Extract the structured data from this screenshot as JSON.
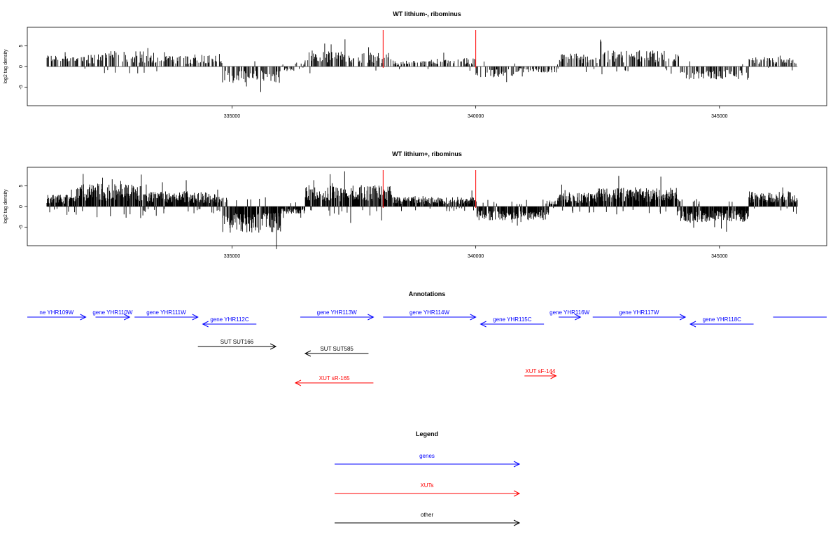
{
  "chart_data": [
    {
      "type": "bar",
      "title": "WT lithium-, ribominus",
      "xlabel": "",
      "ylabel": "log2 tag density",
      "x_range": [
        331200,
        346600
      ],
      "xlim": [
        330800,
        347200
      ],
      "ylim": [
        -9.5,
        9.5
      ],
      "x_ticks": [
        335000,
        340000,
        345000
      ],
      "x_tick_labels": [
        "335000",
        "340000",
        "345000"
      ],
      "y_ticks": [
        -5,
        0,
        5
      ],
      "y_tick_labels": [
        "-5",
        "0",
        "5"
      ],
      "marker_lines": [
        338100,
        340000
      ],
      "marker_color": "#ff0000",
      "bar_color": "#000000",
      "regions": [
        {
          "x0": 331200,
          "x1": 332200,
          "sign": 1,
          "mean": 2.0
        },
        {
          "x0": 332200,
          "x1": 333400,
          "sign": 1,
          "mean": 2.6
        },
        {
          "x0": 333400,
          "x1": 334200,
          "sign": 1,
          "mean": 1.8
        },
        {
          "x0": 334200,
          "x1": 334800,
          "sign": 1,
          "mean": 2.2
        },
        {
          "x0": 334800,
          "x1": 336000,
          "sign": -1,
          "mean": 2.8
        },
        {
          "x0": 336000,
          "x1": 336300,
          "sign": -1,
          "mean": 0.8
        },
        {
          "x0": 336300,
          "x1": 336500,
          "sign": 1,
          "mean": 1.2
        },
        {
          "x0": 336500,
          "x1": 337600,
          "sign": 1,
          "mean": 2.7
        },
        {
          "x0": 337600,
          "x1": 338300,
          "sign": 1,
          "mean": 2.3
        },
        {
          "x0": 338300,
          "x1": 339000,
          "sign": 1,
          "mean": 1.0
        },
        {
          "x0": 339000,
          "x1": 340000,
          "sign": 1,
          "mean": 1.4
        },
        {
          "x0": 340000,
          "x1": 340800,
          "sign": -1,
          "mean": 1.8
        },
        {
          "x0": 340800,
          "x1": 341700,
          "sign": -1,
          "mean": 1.0
        },
        {
          "x0": 341700,
          "x1": 342500,
          "sign": 1,
          "mean": 2.2
        },
        {
          "x0": 342500,
          "x1": 344200,
          "sign": 1,
          "mean": 2.7
        },
        {
          "x0": 344200,
          "x1": 345600,
          "sign": -1,
          "mean": 2.2
        },
        {
          "x0": 345600,
          "x1": 346600,
          "sign": 1,
          "mean": 1.6
        }
      ]
    },
    {
      "type": "bar",
      "title": "WT lithium+, ribominus",
      "xlabel": "",
      "ylabel": "log2 tag density",
      "x_range": [
        331200,
        346600
      ],
      "xlim": [
        330800,
        347200
      ],
      "ylim": [
        -9.5,
        9.5
      ],
      "x_ticks": [
        335000,
        340000,
        345000
      ],
      "x_tick_labels": [
        "335000",
        "340000",
        "345000"
      ],
      "y_ticks": [
        -5,
        0,
        5
      ],
      "y_tick_labels": [
        "-5",
        "0",
        "5"
      ],
      "marker_lines": [
        338100,
        340000
      ],
      "marker_color": "#ff0000",
      "bar_color": "#000000",
      "regions": [
        {
          "x0": 331200,
          "x1": 331800,
          "sign": 1,
          "mean": 2.0
        },
        {
          "x0": 331800,
          "x1": 333200,
          "sign": 1,
          "mean": 3.8
        },
        {
          "x0": 333200,
          "x1": 334200,
          "sign": 1,
          "mean": 2.6
        },
        {
          "x0": 334200,
          "x1": 334800,
          "sign": 1,
          "mean": 2.4
        },
        {
          "x0": 334800,
          "x1": 336000,
          "sign": -1,
          "mean": 4.4
        },
        {
          "x0": 336000,
          "x1": 336500,
          "sign": -1,
          "mean": 1.2
        },
        {
          "x0": 336500,
          "x1": 338300,
          "sign": 1,
          "mean": 3.6
        },
        {
          "x0": 338300,
          "x1": 340000,
          "sign": 1,
          "mean": 1.6
        },
        {
          "x0": 340000,
          "x1": 341500,
          "sign": -1,
          "mean": 2.3
        },
        {
          "x0": 341500,
          "x1": 341700,
          "sign": 1,
          "mean": 1.0
        },
        {
          "x0": 341700,
          "x1": 342500,
          "sign": 1,
          "mean": 2.5
        },
        {
          "x0": 342500,
          "x1": 344200,
          "sign": 1,
          "mean": 3.2
        },
        {
          "x0": 344200,
          "x1": 345600,
          "sign": -1,
          "mean": 2.6
        },
        {
          "x0": 345600,
          "x1": 346600,
          "sign": 1,
          "mean": 2.6
        }
      ]
    }
  ],
  "annotations": {
    "title": "Annotations",
    "features": [
      {
        "label": "ne YHR109W",
        "x0": 330800,
        "x1": 332000,
        "dir": "right",
        "row": 0,
        "color": "#0000ff"
      },
      {
        "label": "gene YHR110W",
        "x0": 332200,
        "x1": 332900,
        "dir": "right",
        "row": 0,
        "color": "#0000ff"
      },
      {
        "label": "gene YHR111W",
        "x0": 333000,
        "x1": 334300,
        "dir": "right",
        "row": 0,
        "color": "#0000ff"
      },
      {
        "label": "gene YHR112C",
        "x0": 334400,
        "x1": 335500,
        "dir": "left",
        "row": 1,
        "color": "#0000ff"
      },
      {
        "label": "gene YHR113W",
        "x0": 336400,
        "x1": 337900,
        "dir": "right",
        "row": 0,
        "color": "#0000ff"
      },
      {
        "label": "gene YHR114W",
        "x0": 338100,
        "x1": 340000,
        "dir": "right",
        "row": 0,
        "color": "#0000ff"
      },
      {
        "label": "gene YHR115C",
        "x0": 340100,
        "x1": 341400,
        "dir": "left",
        "row": 1,
        "color": "#0000ff"
      },
      {
        "label": "gene YHR116W",
        "x0": 341700,
        "x1": 342150,
        "dir": "right",
        "row": 0,
        "color": "#0000ff"
      },
      {
        "label": "gene YHR117W",
        "x0": 342400,
        "x1": 344300,
        "dir": "right",
        "row": 0,
        "color": "#0000ff"
      },
      {
        "label": "gene YHR118C",
        "x0": 344400,
        "x1": 345700,
        "dir": "left",
        "row": 1,
        "color": "#0000ff"
      },
      {
        "label": "",
        "x0": 346100,
        "x1": 347200,
        "dir": "none",
        "row": 0,
        "color": "#0000ff"
      },
      {
        "label": "SUT SUT166",
        "x0": 334300,
        "x1": 335900,
        "dir": "right",
        "row": 2,
        "color": "#000000"
      },
      {
        "label": "SUT SUT585",
        "x0": 336500,
        "x1": 337800,
        "dir": "left",
        "row": 3,
        "color": "#000000"
      },
      {
        "label": "XUT sR-165",
        "x0": 336300,
        "x1": 337900,
        "dir": "left",
        "row": 5,
        "color": "#ff0000"
      },
      {
        "label": "XUT sF-144",
        "x0": 341000,
        "x1": 341650,
        "dir": "right",
        "row": 4,
        "color": "#ff0000"
      }
    ]
  },
  "legend": {
    "title": "Legend",
    "items": [
      {
        "label": "genes",
        "color": "#0000ff"
      },
      {
        "label": "XUTs",
        "color": "#ff0000"
      },
      {
        "label": "other",
        "color": "#000000"
      }
    ]
  }
}
